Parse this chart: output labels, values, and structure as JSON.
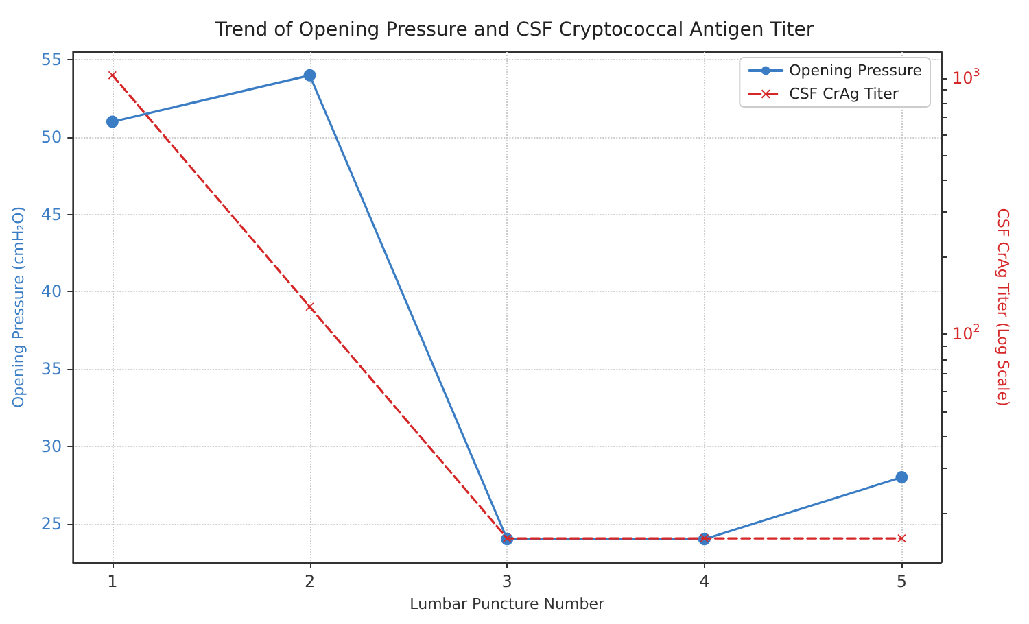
{
  "chart_data": {
    "type": "line",
    "title": "Trend of Opening Pressure and CSF Cryptococcal Antigen Titer",
    "xlabel": "Lumbar Puncture Number",
    "ylabel": "Opening Pressure (cmH₂O)",
    "y2label": "CSF CrAg Titer (Log Scale)",
    "x": [
      1,
      2,
      3,
      4,
      5
    ],
    "series": [
      {
        "name": "Opening Pressure",
        "color": "#3a7dc4",
        "values": [
          51,
          54,
          24,
          24,
          28
        ],
        "marker": "circle",
        "line_style": "solid"
      },
      {
        "name": "CSF CrAg Titer",
        "color": "#d62728",
        "values": [
          1024,
          128,
          16,
          16,
          16
        ],
        "axis": "y2",
        "marker": "cross",
        "line_style": "dashed"
      }
    ],
    "xlim": [
      0.8,
      5.2
    ],
    "xticks": [
      1,
      2,
      3,
      4,
      5
    ],
    "ylim": [
      22.5,
      55.5
    ],
    "yticks": [
      25,
      30,
      35,
      40,
      45,
      50,
      55
    ],
    "log": "y2",
    "y2lim": [
      12.9,
      1260
    ],
    "y2ticks": [
      {
        "value": 20,
        "label": null
      },
      {
        "value": 30,
        "label": null
      },
      {
        "value": 40,
        "label": null
      },
      {
        "value": 50,
        "label": null
      },
      {
        "value": 60,
        "label": null
      },
      {
        "value": 70,
        "label": null
      },
      {
        "value": 80,
        "label": null
      },
      {
        "value": 90,
        "label": null
      },
      {
        "value": 100,
        "label": "10$^{2}$"
      },
      {
        "value": 200,
        "label": null
      },
      {
        "value": 300,
        "label": null
      },
      {
        "value": 400,
        "label": null
      },
      {
        "value": 500,
        "label": null
      },
      {
        "value": 600,
        "label": null
      },
      {
        "value": 700,
        "label": null
      },
      {
        "value": 800,
        "label": null
      },
      {
        "value": 900,
        "label": null
      },
      {
        "value": 1000,
        "label": "10$^{3}$"
      }
    ],
    "grid": true,
    "legend": "top right"
  }
}
